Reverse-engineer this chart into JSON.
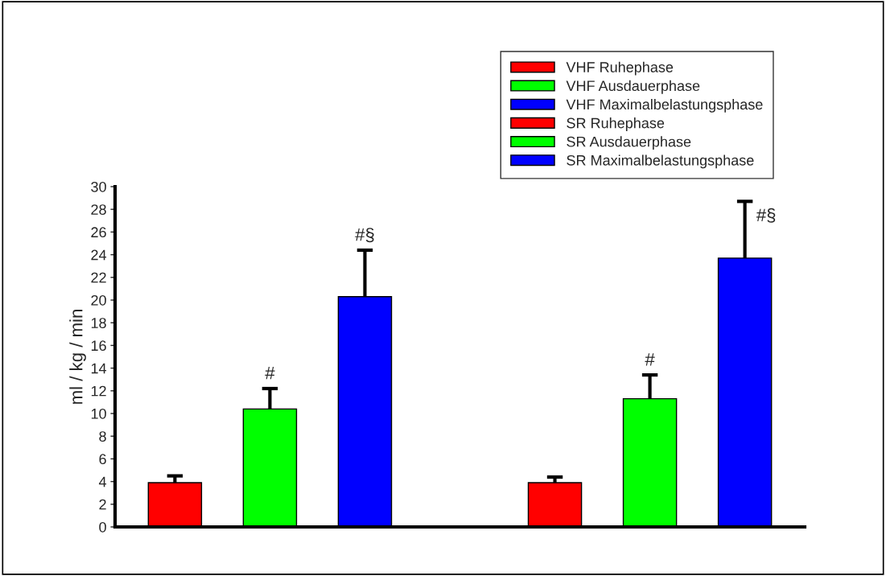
{
  "chart_data": {
    "type": "bar",
    "ylabel": "ml / kg / min",
    "categories": [
      null,
      null,
      null,
      null,
      null,
      null,
      null
    ],
    "ylim": [
      0,
      30
    ],
    "yticks": [
      0,
      2,
      4,
      6,
      8,
      10,
      12,
      14,
      16,
      18,
      20,
      22,
      24,
      26,
      28,
      30
    ],
    "grid": false,
    "legend": "top right",
    "series": [
      {
        "name": "VHF Ruhephase",
        "color": "#ff0000",
        "values": [
          3.9,
          null,
          null,
          null,
          null,
          null,
          null
        ],
        "errors": [
          [
            3.9,
            4.5
          ],
          null,
          null,
          null,
          null,
          null,
          null
        ]
      },
      {
        "name": "VHF Ausdauerphase",
        "color": "#00ff00",
        "values": [
          null,
          10.4,
          null,
          null,
          null,
          null,
          null
        ],
        "errors": [
          null,
          [
            10.4,
            12.2
          ],
          null,
          null,
          null,
          null,
          null
        ],
        "value_labels": [
          null,
          "#",
          null,
          null,
          null,
          null,
          null
        ]
      },
      {
        "name": "VHF Maximalbelastungsphase",
        "color": "#0000ff",
        "values": [
          null,
          null,
          20.3,
          null,
          null,
          null,
          null
        ],
        "errors": [
          null,
          null,
          [
            20.3,
            24.4
          ],
          null,
          null,
          null,
          null
        ],
        "value_labels": [
          null,
          null,
          "#§",
          null,
          null,
          null,
          null
        ]
      },
      {
        "name": "SR Ruhephase",
        "color": "#ff0000",
        "values": [
          null,
          null,
          null,
          null,
          3.9,
          null,
          null
        ],
        "errors": [
          null,
          null,
          null,
          null,
          [
            3.9,
            4.4
          ],
          null,
          null
        ]
      },
      {
        "name": "SR Ausdauerphase",
        "color": "#00ff00",
        "values": [
          null,
          null,
          null,
          null,
          null,
          11.3,
          null
        ],
        "errors": [
          null,
          null,
          null,
          null,
          null,
          [
            11.3,
            13.4
          ],
          null
        ],
        "value_labels": [
          null,
          null,
          null,
          null,
          null,
          "#",
          null
        ]
      },
      {
        "name": "SR Maximalbelastungsphase",
        "color": "#0000ff",
        "values": [
          null,
          null,
          null,
          null,
          null,
          null,
          23.7
        ],
        "errors": [
          null,
          null,
          null,
          null,
          null,
          null,
          [
            23.7,
            28.7
          ]
        ],
        "value_labels": [
          null,
          null,
          null,
          null,
          null,
          null,
          "#§"
        ]
      }
    ]
  }
}
